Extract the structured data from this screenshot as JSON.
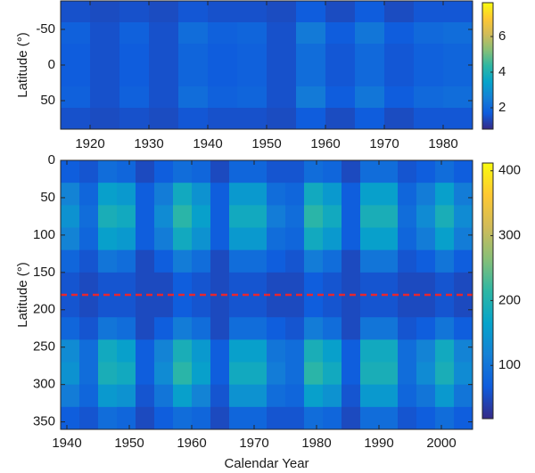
{
  "chart_data": [
    {
      "type": "heatmap",
      "ylabel": "Latitude (°)",
      "x": [
        1915,
        1920,
        1925,
        1930,
        1935,
        1940,
        1945,
        1950,
        1955,
        1960,
        1965,
        1970,
        1975,
        1980,
        1985
      ],
      "y": [
        -90,
        -60,
        -30,
        0,
        30,
        60,
        90
      ],
      "values": [
        [
          1.5,
          1.8,
          1.7,
          1.7,
          1.8,
          1.5
        ],
        [
          1.4,
          1.5,
          1.5,
          1.5,
          1.5,
          1.4
        ],
        [
          1.5,
          1.8,
          1.7,
          1.7,
          1.8,
          1.5
        ],
        [
          1.4,
          1.5,
          1.5,
          1.5,
          1.5,
          1.4
        ],
        [
          1.6,
          2.1,
          1.9,
          1.9,
          2.1,
          1.6
        ],
        [
          1.5,
          1.8,
          1.7,
          1.7,
          1.8,
          1.5
        ],
        [
          1.5,
          1.9,
          1.8,
          1.8,
          1.9,
          1.5
        ],
        [
          1.4,
          1.5,
          1.5,
          1.5,
          1.5,
          1.4
        ],
        [
          1.7,
          2.4,
          2.1,
          2.1,
          2.4,
          1.7
        ],
        [
          1.4,
          1.7,
          1.6,
          1.6,
          1.7,
          1.4
        ],
        [
          1.7,
          2.3,
          2.0,
          2.0,
          2.3,
          1.7
        ],
        [
          1.4,
          1.7,
          1.6,
          1.6,
          1.7,
          1.4
        ],
        [
          1.6,
          2.0,
          1.8,
          1.8,
          2.0,
          1.6
        ],
        [
          1.6,
          2.1,
          1.9,
          1.9,
          2.1,
          1.6
        ]
      ],
      "xlim": [
        1915,
        1985
      ],
      "ylim": [
        -90,
        90
      ],
      "xticks": [
        1920,
        1930,
        1940,
        1950,
        1960,
        1970,
        1980
      ],
      "yticks": [
        -50,
        0,
        50
      ],
      "clim": [
        0.8,
        7.9
      ],
      "cticks": [
        2,
        4,
        6
      ],
      "colormap": [
        "#352a87",
        "#0f5cdd",
        "#1481d6",
        "#06a4ca",
        "#2eb7a4",
        "#87bf77",
        "#d1bb59",
        "#fec832",
        "#f9fb0e"
      ]
    },
    {
      "type": "heatmap",
      "ylabel": "Latitude (°)",
      "xlabel": "Calendar Year",
      "x": [
        1939,
        1942,
        1945,
        1948,
        1951,
        1954,
        1957,
        1960,
        1963,
        1966,
        1969,
        1972,
        1975,
        1978,
        1981,
        1984,
        1987,
        1990,
        1993,
        1996,
        1999,
        2002,
        2005
      ],
      "y": [
        0,
        30,
        60,
        90,
        120,
        150,
        180,
        210,
        240,
        270,
        300,
        330,
        360
      ],
      "values": [
        [
          70,
          120,
          140,
          120,
          80,
          60,
          60,
          80,
          130,
          140,
          110,
          70
        ],
        [
          60,
          80,
          90,
          80,
          60,
          50,
          50,
          60,
          90,
          90,
          80,
          60
        ],
        [
          90,
          160,
          190,
          160,
          100,
          60,
          60,
          100,
          180,
          190,
          150,
          90
        ],
        [
          80,
          150,
          180,
          150,
          90,
          60,
          60,
          90,
          160,
          180,
          140,
          80
        ],
        [
          50,
          70,
          70,
          70,
          50,
          50,
          50,
          50,
          70,
          70,
          60,
          50
        ],
        [
          70,
          110,
          130,
          110,
          70,
          50,
          50,
          70,
          120,
          130,
          100,
          70
        ],
        [
          90,
          180,
          210,
          180,
          110,
          70,
          70,
          110,
          190,
          210,
          160,
          90
        ],
        [
          80,
          140,
          160,
          140,
          90,
          60,
          60,
          90,
          150,
          160,
          120,
          80
        ],
        [
          50,
          70,
          70,
          70,
          50,
          50,
          50,
          50,
          70,
          70,
          60,
          50
        ],
        [
          80,
          150,
          180,
          150,
          90,
          60,
          60,
          90,
          160,
          180,
          140,
          80
        ],
        [
          80,
          150,
          180,
          150,
          90,
          60,
          60,
          90,
          160,
          180,
          140,
          80
        ],
        [
          60,
          90,
          110,
          90,
          70,
          50,
          50,
          70,
          100,
          110,
          90,
          60
        ],
        [
          60,
          80,
          90,
          80,
          60,
          50,
          50,
          60,
          90,
          90,
          80,
          60
        ],
        [
          90,
          180,
          210,
          180,
          110,
          70,
          70,
          110,
          190,
          210,
          160,
          90
        ],
        [
          80,
          150,
          180,
          150,
          90,
          60,
          60,
          90,
          160,
          180,
          140,
          80
        ],
        [
          50,
          70,
          70,
          70,
          50,
          50,
          50,
          50,
          70,
          70,
          60,
          50
        ],
        [
          90,
          160,
          190,
          160,
          100,
          60,
          60,
          100,
          180,
          190,
          150,
          90
        ],
        [
          90,
          160,
          190,
          160,
          100,
          60,
          60,
          100,
          180,
          190,
          150,
          90
        ],
        [
          60,
          80,
          90,
          80,
          60,
          50,
          50,
          60,
          90,
          90,
          80,
          60
        ],
        [
          70,
          110,
          130,
          110,
          70,
          50,
          50,
          70,
          120,
          130,
          100,
          70
        ],
        [
          90,
          160,
          190,
          160,
          100,
          60,
          60,
          100,
          180,
          190,
          150,
          90
        ],
        [
          70,
          110,
          130,
          110,
          70,
          50,
          50,
          70,
          120,
          130,
          100,
          70
        ]
      ],
      "xlim": [
        1939,
        2005
      ],
      "ylim": [
        0,
        360
      ],
      "xticks": [
        1940,
        1950,
        1960,
        1970,
        1980,
        1990,
        2000
      ],
      "yticks": [
        0,
        50,
        100,
        150,
        200,
        250,
        300,
        350
      ],
      "clim": [
        18,
        412
      ],
      "cticks": [
        100,
        200,
        300,
        400
      ],
      "colormap": [
        "#352a87",
        "#0f5cdd",
        "#1481d6",
        "#06a4ca",
        "#2eb7a4",
        "#87bf77",
        "#d1bb59",
        "#fec832",
        "#f9fb0e"
      ],
      "reference_line": {
        "value": 180,
        "color": "#e8262f",
        "dash": true
      }
    }
  ]
}
